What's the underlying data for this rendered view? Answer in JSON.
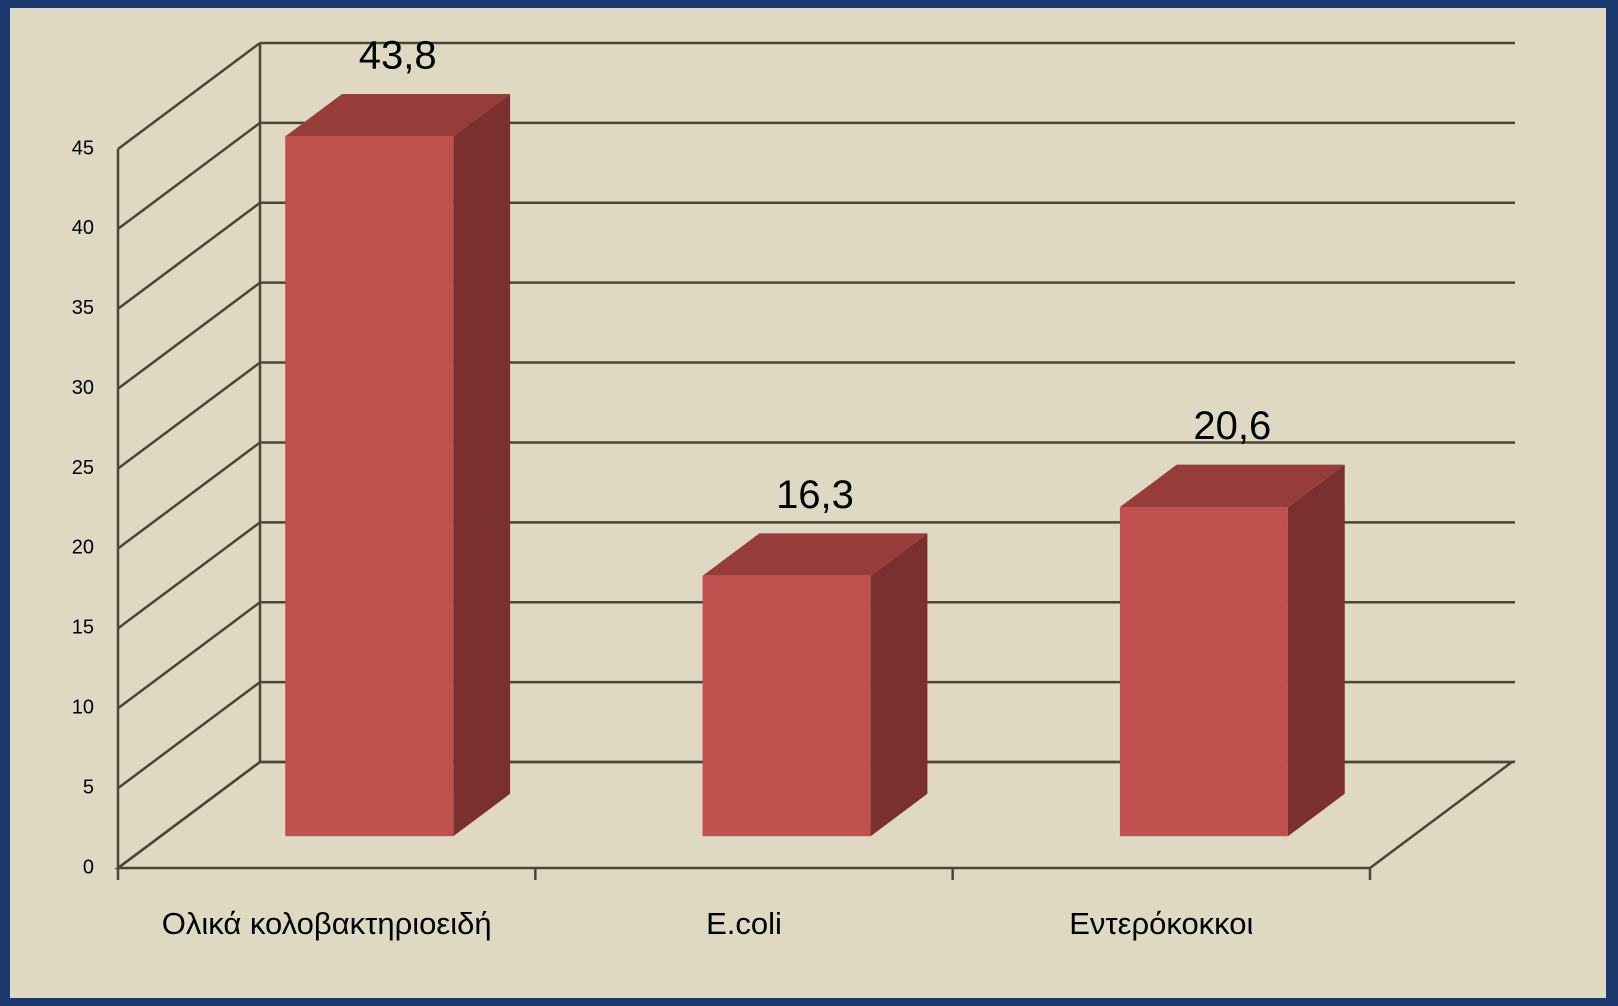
{
  "chart_data": {
    "type": "bar3d",
    "categories": [
      "Ολικά κολοβακτηριοειδή",
      "E.coli",
      "Εντερόκοκκοι"
    ],
    "values": [
      43.8,
      16.3,
      20.6
    ],
    "value_labels": [
      "43,8",
      "16,3",
      "20,6"
    ],
    "color": "#c0504d",
    "ylim": [
      0,
      45
    ],
    "yticks": [
      0,
      5,
      10,
      15,
      20,
      25,
      30,
      35,
      40,
      45
    ],
    "grid": true
  }
}
